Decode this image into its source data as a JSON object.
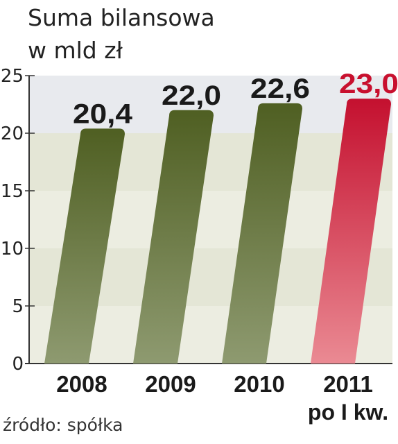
{
  "title_lines": [
    "Suma bilansowa",
    "w mld zł"
  ],
  "source": "źródło: spółka",
  "colors": {
    "bar_top": "#4f5f22",
    "bar_bottom": "#8e9a70",
    "highlight_top": "#c4102f",
    "highlight_bottom": "#ea8a93",
    "label": "#1a1a1a",
    "highlight_label": "#c8102e"
  },
  "chart_data": {
    "type": "bar",
    "title": "Suma bilansowa w mld zł",
    "categories": [
      "2008",
      "2009",
      "2010",
      "2011"
    ],
    "category_sublabels": [
      "",
      "",
      "",
      "po I kw."
    ],
    "values": [
      20.4,
      22.0,
      22.6,
      23.0
    ],
    "value_labels": [
      "20,4",
      "22,0",
      "22,6",
      "23,0"
    ],
    "highlight_index": 3,
    "ylim": [
      0,
      25
    ],
    "yticks": [
      0,
      5,
      10,
      15,
      20,
      25
    ],
    "grid": false,
    "xlabel": "",
    "ylabel": ""
  }
}
